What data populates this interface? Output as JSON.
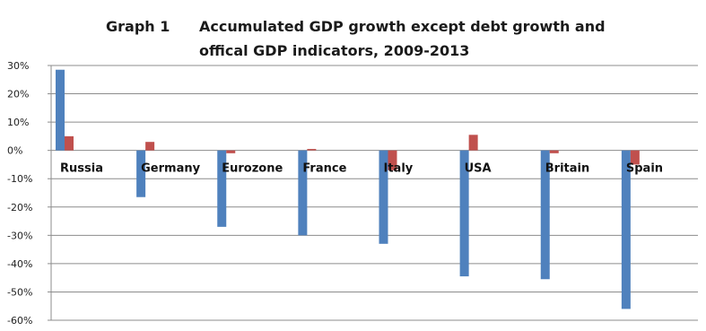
{
  "header": {
    "graph_label": "Graph 1",
    "title_line1": "Accumulated GDP growth except debt growth and",
    "title_line2": "offical GDP indicators, 2009-2013"
  },
  "chart_data": {
    "type": "bar",
    "title": "Accumulated GDP growth except debt growth and offical GDP indicators, 2009-2013",
    "categories": [
      "Russia",
      "Germany",
      "Eurozone",
      "France",
      "Italy",
      "USA",
      "Britain",
      "Spain"
    ],
    "series": [
      {
        "color": "#4F81BD",
        "values": [
          28.5,
          -16.5,
          -27,
          -30,
          -33,
          -44.5,
          -45.5,
          -56
        ]
      },
      {
        "color": "#C0504D",
        "values": [
          5,
          3,
          -1,
          0.5,
          -7,
          5.5,
          -1,
          -5
        ]
      }
    ],
    "ylim": [
      -60,
      30
    ],
    "yticks": [
      "30%",
      "20%",
      "10%",
      "0%",
      "-10%",
      "-20%",
      "-30%",
      "-40%",
      "-50%",
      "-60%"
    ],
    "grid": true,
    "legend": "none",
    "xlabel": "",
    "ylabel": ""
  }
}
